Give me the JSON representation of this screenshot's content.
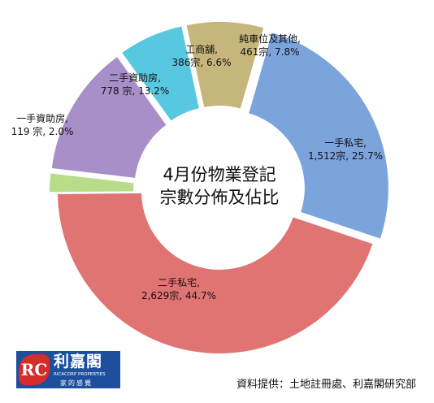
{
  "chart_data": {
    "type": "pie",
    "title_lines": [
      "4月份物業登記",
      "宗數分佈及佔比"
    ],
    "slices": [
      {
        "name": "一手私宅",
        "count_text": "1,512宗",
        "pct_text": "25.7%",
        "value": 25.7,
        "color": "#7ba3dc"
      },
      {
        "name": "二手私宅",
        "count_text": "2,629宗",
        "pct_text": "44.7%",
        "value": 44.7,
        "color": "#e07473"
      },
      {
        "name": "一手資助房",
        "count_text": "119 宗",
        "pct_text": "2.0%",
        "value": 2.0,
        "color": "#b9dc8b"
      },
      {
        "name": "二手資助房",
        "count_text": "778 宗",
        "pct_text": "13.2%",
        "value": 13.2,
        "color": "#a98fc9"
      },
      {
        "name": "工商舖",
        "count_text": "386宗",
        "pct_text": "6.6%",
        "value": 6.6,
        "color": "#58c7e0"
      },
      {
        "name": "純車位及其他",
        "count_text": "461宗",
        "pct_text": "7.8%",
        "value": 7.8,
        "color": "#c6b67c"
      }
    ]
  },
  "logo": {
    "mark": "RC",
    "name": "利嘉閣",
    "english": "RICACORP PROPERTIES",
    "tagline": "家的感覺"
  },
  "source": "資料提供：土地註冊處、利嘉閣研究部"
}
